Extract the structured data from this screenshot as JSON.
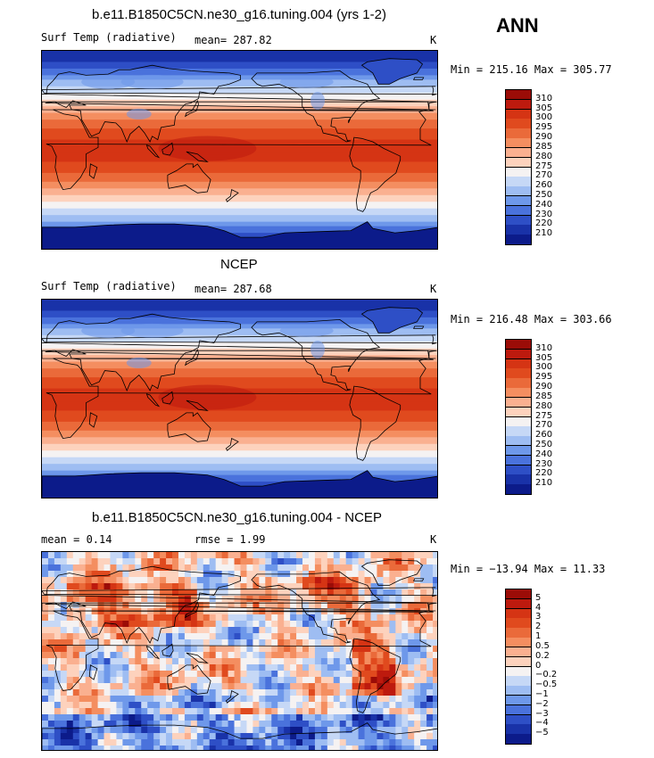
{
  "season": "ANN",
  "panels": [
    {
      "title": "b.e11.B1850C5CN.ne30_g16.tuning.004 (yrs 1-2)",
      "left_label": "Surf Temp (radiative)",
      "center_label": "mean= 287.82",
      "units": "K",
      "minmax": "Min = 215.16 Max = 305.77",
      "kind": "temp"
    },
    {
      "title": "NCEP",
      "left_label": "Surf Temp (radiative)",
      "center_label": "mean= 287.68",
      "units": "K",
      "minmax": "Min = 216.48 Max = 303.66",
      "kind": "temp"
    },
    {
      "title": "b.e11.B1850C5CN.ne30_g16.tuning.004 - NCEP",
      "left_label": "mean =   0.14",
      "center_label": "rmse =   1.99",
      "units": "K",
      "minmax": "Min = −13.94 Max =  11.33",
      "kind": "diff"
    }
  ],
  "temp_colorbar": {
    "labels": [
      "310",
      "305",
      "300",
      "295",
      "290",
      "285",
      "280",
      "275",
      "270",
      "260",
      "250",
      "240",
      "230",
      "220",
      "210"
    ],
    "colors": [
      "#9b0c07",
      "#bd1a0e",
      "#d53414",
      "#e04a1e",
      "#ea6a3a",
      "#f48e60",
      "#fab090",
      "#fdd2bd",
      "#f5f2f2",
      "#c6d8f6",
      "#9ebdf2",
      "#6e98ea",
      "#4a72dc",
      "#2e4fc6",
      "#1932a8",
      "#0c1b8a"
    ]
  },
  "diff_colorbar": {
    "labels": [
      "5",
      "4",
      "3",
      "2",
      "1",
      "0.5",
      "0.2",
      "0",
      "−0.2",
      "−0.5",
      "−1",
      "−2",
      "−3",
      "−4",
      "−5"
    ],
    "colors": [
      "#9b0c07",
      "#bd1a0e",
      "#d53414",
      "#e04a1e",
      "#ea6a3a",
      "#f48e60",
      "#fab090",
      "#fdd2bd",
      "#f5f2f2",
      "#c6d8f6",
      "#9ebdf2",
      "#6e98ea",
      "#4a72dc",
      "#2e4fc6",
      "#1932a8",
      "#0c1b8a"
    ]
  },
  "chart_data": [
    {
      "type": "heatmap",
      "title": "b.e11.B1850C5CN.ne30_g16.tuning.004 (yrs 1-2)",
      "variable": "Surf Temp (radiative)",
      "units": "K",
      "mean": 287.82,
      "min": 215.16,
      "max": 305.77,
      "contour_levels": [
        210,
        220,
        230,
        240,
        250,
        260,
        270,
        275,
        280,
        285,
        290,
        295,
        300,
        305,
        310
      ]
    },
    {
      "type": "heatmap",
      "title": "NCEP",
      "variable": "Surf Temp (radiative)",
      "units": "K",
      "mean": 287.68,
      "min": 216.48,
      "max": 303.66,
      "contour_levels": [
        210,
        220,
        230,
        240,
        250,
        260,
        270,
        275,
        280,
        285,
        290,
        295,
        300,
        305,
        310
      ]
    },
    {
      "type": "heatmap",
      "title": "b.e11.B1850C5CN.ne30_g16.tuning.004 - NCEP",
      "units": "K",
      "mean": 0.14,
      "rmse": 1.99,
      "min": -13.94,
      "max": 11.33,
      "contour_levels": [
        -5,
        -4,
        -3,
        -2,
        -1,
        -0.5,
        -0.2,
        0,
        0.2,
        0.5,
        1,
        2,
        3,
        4,
        5
      ]
    }
  ]
}
